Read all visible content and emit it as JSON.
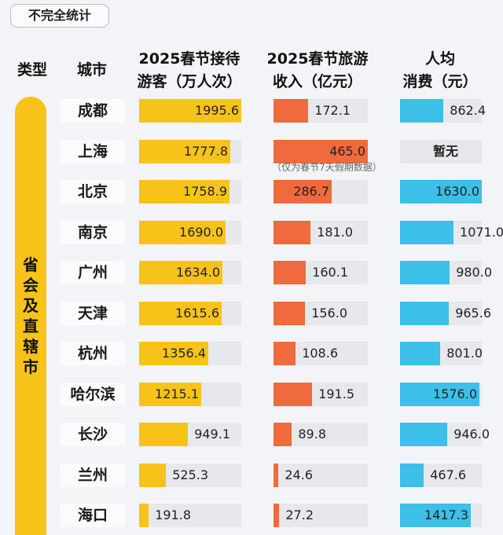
{
  "tag": "不完全统计",
  "headers": {
    "type": "类型",
    "city": "城市",
    "visitors_line1": "2025春节接待",
    "visitors_line2": "游客（万人次）",
    "income_line1": "2025春节旅游",
    "income_line2": "收入（亿元）",
    "percap_line1": "人均",
    "percap_line2": "消费（元）"
  },
  "category": "省会及直辖市",
  "note": "（仅为春节7天假期数据）",
  "colors": {
    "visitors": "#f7c318",
    "income": "#ef6a3c",
    "percap": "#3cbfe8",
    "track": "#e7e8ec"
  },
  "chart_data": {
    "type": "bar",
    "categories": [
      "成都",
      "上海",
      "北京",
      "南京",
      "广州",
      "天津",
      "杭州",
      "哈尔滨",
      "长沙",
      "兰州",
      "海口"
    ],
    "series": [
      {
        "name": "2025春节接待游客（万人次）",
        "values": [
          1995.6,
          1777.8,
          1758.9,
          1690.0,
          1634.0,
          1615.6,
          1356.4,
          1215.1,
          949.1,
          525.3,
          191.8
        ],
        "labels": [
          "1995.6",
          "1777.8",
          "1758.9",
          "1690.0",
          "1634.0",
          "1615.6",
          "1356.4",
          "1215.1",
          "949.1",
          "525.3",
          "191.8"
        ]
      },
      {
        "name": "2025春节旅游收入（亿元）",
        "values": [
          172.1,
          465.0,
          286.7,
          181.0,
          160.1,
          156.0,
          108.6,
          191.5,
          89.8,
          24.6,
          27.2
        ],
        "labels": [
          "172.1",
          "465.0",
          "286.7",
          "181.0",
          "160.1",
          "156.0",
          "108.6",
          "191.5",
          "89.8",
          "24.6",
          "27.2"
        ]
      },
      {
        "name": "人均消费（元）",
        "values": [
          862.4,
          null,
          1630.0,
          1071.0,
          980.0,
          965.6,
          801.0,
          1576.0,
          946.0,
          467.6,
          1417.3
        ],
        "labels": [
          "862.4",
          "暂无",
          "1630.0",
          "1071.0",
          "980.0",
          "965.6",
          "801.0",
          "1576.0",
          "946.0",
          "467.6",
          "1417.3"
        ]
      }
    ]
  }
}
